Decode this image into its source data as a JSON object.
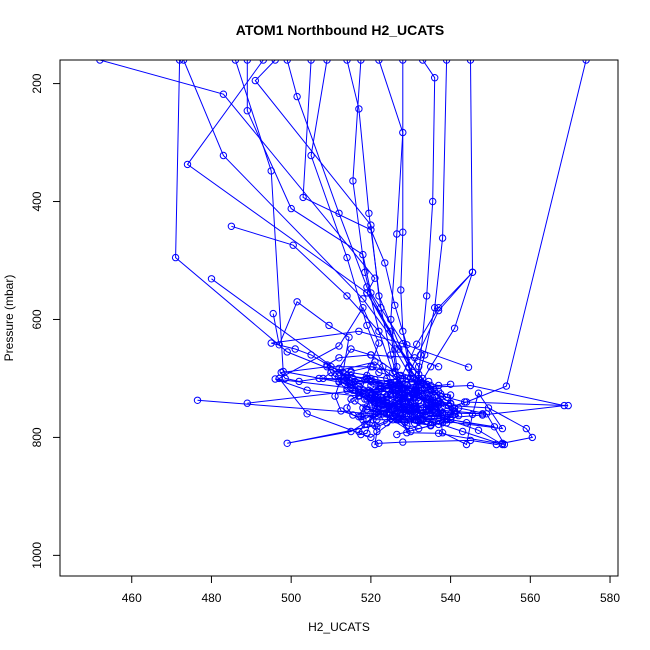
{
  "chart_data": {
    "type": "line",
    "title": "ATOM1 Northbound H2_UCATS",
    "xlabel": "H2_UCATS",
    "ylabel": "Pressure (mbar)",
    "xlim": [
      442,
      582
    ],
    "ylim": [
      1035,
      160
    ],
    "y_inverted": true,
    "xticks": [
      460,
      480,
      500,
      520,
      540,
      560,
      580
    ],
    "yticks": [
      200,
      400,
      600,
      800,
      1000
    ],
    "grid": false,
    "marker": "open-circle",
    "color": "#0000ff",
    "series": [
      {
        "x": [
          493.0,
          474.0,
          519.0,
          525.0,
          527.0,
          533.0,
          528.0,
          520.0,
          504.0,
          497.0,
          512.0,
          518.0,
          522.0,
          517.0,
          504.0,
          496.0,
          519.5,
          525.5,
          530.0,
          523.0,
          532.0,
          528.0,
          515.0,
          499.0,
          521.0,
          529.0,
          534.5,
          548.0,
          521.0,
          519.0,
          532.5,
          529.0,
          520.5,
          522.0,
          528.0,
          535.0,
          526.5
        ],
        "y": [
          160.0,
          337.0,
          555.0,
          620.0,
          725.0,
          700.0,
          760.0,
          800.0,
          760.0,
          700.0,
          645.0,
          580.0,
          640.0,
          730.0,
          720.0,
          701.0,
          720.0,
          762.0,
          790.0,
          760.0,
          710.0,
          735.0,
          790.0,
          810.0,
          780.0,
          760.0,
          752.0,
          760.0,
          756.0,
          748.0,
          770.0,
          750.0,
          738.0,
          735.0,
          770.0,
          780.0,
          795.0
        ]
      },
      {
        "x": [
          452.0,
          483.0,
          521.0,
          519.0,
          530.5,
          537.0,
          538.0,
          544.0,
          545.5,
          547.0,
          553.0,
          533.0,
          515.5,
          513.0,
          508.0,
          510.0,
          521.0,
          529.5,
          536.0,
          534.0,
          531.0,
          527.5,
          520.0,
          516.0,
          523.0,
          527.0,
          540.0,
          537.0,
          528.0,
          522.0,
          520.5,
          510.0,
          505.0,
          501.0,
          495.0,
          517.0,
          528.0,
          544.5
        ],
        "y": [
          160.0,
          218.0,
          530.0,
          555.0,
          690.0,
          745.0,
          792.0,
          812.0,
          761.0,
          725.0,
          785.0,
          768.0,
          720.0,
          701.0,
          700.0,
          690.0,
          672.0,
          720.0,
          750.0,
          745.0,
          725.0,
          712.0,
          705.0,
          705.0,
          733.0,
          720.0,
          710.0,
          712.0,
          700.0,
          690.0,
          680.0,
          680.0,
          660.0,
          650.0,
          640.0,
          620.0,
          641.0,
          681.0
        ]
      },
      {
        "x": [
          472.0,
          471.0,
          499.0,
          515.5,
          536.0,
          541.0,
          539.0,
          537.0,
          537.0,
          549.5,
          559.0,
          560.5,
          553.0,
          551.5,
          545.0,
          528.0,
          522.0,
          521.0,
          521.5,
          520.5,
          526.0,
          534.5,
          536.0,
          534.0,
          530.5,
          527.0,
          524.0,
          515.0,
          509.0,
          497.5,
          498.5,
          502.0,
          507.0,
          513.5,
          525.0,
          531.0,
          543.5,
          569.5
        ],
        "y": [
          160.0,
          495.0,
          655.0,
          700.0,
          740.0,
          757.0,
          770.0,
          763.0,
          745.0,
          750.0,
          785.0,
          800.0,
          810.0,
          812.0,
          805.0,
          808.0,
          810.0,
          812.0,
          790.0,
          770.0,
          760.0,
          752.0,
          745.0,
          735.0,
          725.0,
          712.0,
          700.0,
          690.0,
          680.0,
          690.0,
          700.0,
          705.0,
          700.0,
          703.0,
          710.0,
          718.0,
          740.0,
          746.0
        ]
      },
      {
        "x": [
          473.0,
          483.0,
          518.0,
          532.0,
          541.0,
          527.0,
          521.5,
          518.0,
          520.0,
          528.5,
          535.5,
          533.0,
          528.0,
          521.0,
          519.0,
          520.0,
          525.0,
          531.0,
          536.0,
          538.0,
          530.0,
          522.0,
          517.0,
          514.0,
          512.0,
          515.0,
          520.0,
          527.5,
          534.0,
          537.0,
          539.0,
          537.0,
          534.0,
          531.0,
          528.0,
          526.5
        ],
        "y": [
          160.0,
          322.0,
          565.0,
          693.0,
          760.0,
          770.0,
          770.0,
          761.0,
          733.0,
          728.0,
          740.0,
          730.0,
          710.0,
          702.0,
          695.0,
          712.0,
          725.0,
          731.0,
          741.0,
          760.0,
          770.0,
          752.0,
          724.0,
          705.0,
          683.0,
          650.0,
          660.0,
          695.0,
          715.0,
          722.0,
          732.0,
          740.0,
          745.0,
          747.0,
          750.0,
          747.0
        ]
      },
      {
        "x": [
          489.0,
          489.0,
          500.0,
          518.0,
          520.0,
          532.0,
          532.0,
          528.0,
          525.0,
          526.0,
          531.0,
          540.0,
          540.0,
          533.0,
          524.0,
          514.5,
          511.0,
          512.0,
          518.5,
          526.0,
          533.0,
          536.0,
          537.0,
          535.0,
          531.0,
          527.0,
          524.0,
          521.0,
          518.0,
          515.0,
          512.0,
          510.0,
          509.0,
          512.0,
          520.0,
          531.0,
          537.0
        ],
        "y": [
          160.0,
          246.0,
          412.0,
          490.0,
          555.0,
          680.0,
          720.0,
          750.0,
          760.0,
          760.0,
          757.0,
          742.0,
          728.0,
          720.0,
          710.0,
          703.0,
          696.0,
          690.0,
          702.0,
          720.0,
          728.0,
          732.0,
          740.0,
          748.0,
          750.0,
          748.0,
          740.0,
          732.0,
          725.0,
          715.0,
          705.0,
          690.0,
          677.0,
          665.0,
          660.0,
          665.0,
          680.0
        ]
      },
      {
        "x": [
          496.0,
          491.0,
          520.0,
          522.0,
          529.5,
          534.0,
          537.5,
          541.0,
          536.0,
          527.5,
          519.0,
          514.0,
          512.0,
          514.0,
          519.0,
          525.0,
          532.0,
          536.0,
          534.0,
          531.0,
          527.0,
          523.0,
          520.0,
          517.0,
          514.5,
          513.5,
          515.0,
          520.0,
          526.0,
          532.0,
          535.0,
          536.0,
          535.0,
          532.0
        ],
        "y": [
          160.0,
          195.0,
          440.0,
          560.0,
          682.0,
          725.0,
          755.0,
          760.0,
          765.0,
          752.0,
          735.0,
          720.0,
          706.0,
          695.0,
          700.0,
          712.0,
          732.0,
          748.0,
          760.0,
          757.0,
          748.0,
          738.0,
          728.0,
          718.0,
          708.0,
          698.0,
          688.0,
          680.0,
          688.0,
          700.0,
          712.0,
          722.0,
          730.0,
          737.0
        ]
      },
      {
        "x": [
          499.0,
          501.5,
          512.0,
          519.0,
          527.0,
          535.0,
          542.0,
          549.0,
          553.5,
          537.0,
          529.0,
          528.0,
          526.0,
          522.0,
          517.0,
          514.0,
          515.5,
          520.0,
          525.0,
          531.5,
          535.5,
          537.0,
          534.0,
          530.0,
          525.5,
          521.0,
          518.5,
          519.5,
          524.0,
          529.0,
          533.0,
          534.5
        ],
        "y": [
          160.0,
          222.0,
          420.0,
          545.0,
          650.0,
          720.0,
          750.0,
          760.0,
          812.0,
          793.0,
          792.0,
          760.0,
          743.0,
          740.0,
          729.0,
          717.0,
          707.0,
          700.0,
          707.0,
          720.0,
          733.0,
          745.0,
          752.0,
          757.0,
          753.0,
          745.0,
          735.0,
          725.0,
          717.0,
          712.0,
          708.0,
          705.0
        ]
      },
      {
        "x": [
          486.0,
          495.0,
          498.0,
          515.0,
          529.0,
          537.0,
          545.5,
          537.0,
          531.5,
          527.5,
          524.0,
          520.5,
          519.0,
          517.5,
          517.0,
          518.5,
          522.0,
          527.0,
          532.0,
          535.0,
          534.0,
          530.5,
          526.0,
          522.0,
          520.0
        ],
        "y": [
          160.0,
          348.0,
          688.0,
          710.0,
          700.0,
          585.0,
          520.0,
          580.0,
          642.0,
          700.0,
          730.0,
          760.0,
          793.0,
          795.0,
          790.0,
          778.0,
          760.0,
          742.0,
          728.0,
          718.0,
          710.0,
          706.0,
          706.0,
          712.0,
          723.0
        ]
      },
      {
        "x": [
          505.0,
          503.0,
          520.0,
          523.5,
          526.0,
          529.0,
          530.0,
          528.0,
          524.0,
          521.0,
          518.0,
          515.5,
          514.0,
          515.0,
          518.0,
          522.0,
          526.5,
          530.5,
          532.0,
          531.0,
          528.0,
          524.0,
          521.0
        ],
        "y": [
          160.0,
          393.0,
          448.0,
          504.0,
          576.0,
          643.0,
          700.0,
          725.0,
          743.0,
          760.0,
          770.0,
          762.0,
          750.0,
          735.0,
          726.0,
          722.0,
          722.0,
          728.0,
          738.0,
          748.0,
          752.0,
          750.0,
          742.0
        ]
      },
      {
        "x": [
          509.0,
          505.0,
          514.0,
          519.0,
          523.0,
          525.5,
          526.0,
          524.0,
          521.5,
          519.0,
          517.5,
          518.0,
          520.5,
          524.0,
          527.5,
          529.5,
          530.0
        ],
        "y": [
          160.0,
          322.0,
          495.0,
          610.0,
          680.0,
          720.0,
          752.0,
          775.0,
          782.0,
          778.0,
          765.0,
          750.0,
          738.0,
          732.0,
          733.0,
          740.0,
          750.0
        ]
      },
      {
        "x": [
          514.0,
          517.0,
          519.5,
          522.5,
          525.0,
          527.0,
          528.0,
          526.5,
          523.5,
          521.5,
          520.0,
          520.5,
          523.0,
          526.0,
          528.5,
          530.0,
          531.0
        ],
        "y": [
          160.0,
          243.0,
          420.0,
          580.0,
          660.0,
          708.0,
          728.0,
          740.0,
          745.0,
          742.0,
          735.0,
          726.0,
          722.0,
          724.0,
          732.0,
          742.0,
          752.0
        ]
      },
      {
        "x": [
          517.5,
          515.5,
          518.5,
          522.0,
          525.5,
          528.5,
          530.0,
          529.0,
          526.5,
          523.5,
          521.5,
          521.0,
          522.5,
          525.5,
          528.5,
          530.5
        ],
        "y": [
          160.0,
          365.0,
          520.0,
          620.0,
          690.0,
          725.0,
          750.0,
          765.0,
          770.0,
          765.0,
          752.0,
          740.0,
          732.0,
          730.0,
          734.0,
          742.0
        ]
      },
      {
        "x": [
          522.0,
          528.0,
          526.5,
          525.0,
          526.5,
          528.0,
          530.0,
          531.5,
          532.5,
          531.0,
          528.5,
          525.5,
          524.0,
          524.5,
          527.0
        ],
        "y": [
          160.0,
          283.0,
          455.0,
          600.0,
          680.0,
          720.0,
          740.0,
          750.0,
          760.0,
          770.0,
          774.0,
          770.0,
          760.0,
          748.0,
          738.0
        ]
      },
      {
        "x": [
          528.0,
          528.0,
          527.5,
          528.0,
          529.5,
          532.0,
          534.5,
          536.0,
          535.0,
          532.0,
          529.0,
          527.0,
          526.5,
          528.0,
          531.0
        ],
        "y": [
          160.0,
          452.0,
          550.0,
          620.0,
          680.0,
          720.0,
          745.0,
          765.0,
          780.0,
          785.0,
          780.0,
          768.0,
          752.0,
          740.0,
          733.0
        ]
      },
      {
        "x": [
          533.0,
          536.0,
          535.5,
          534.0,
          532.5,
          531.5,
          532.0,
          534.0,
          537.0,
          539.0,
          538.0,
          535.0,
          532.5,
          531.5
        ],
        "y": [
          160.0,
          190.0,
          400.0,
          560.0,
          660.0,
          720.0,
          752.0,
          772.0,
          778.0,
          770.0,
          758.0,
          750.0,
          748.0,
          752.0
        ]
      },
      {
        "x": [
          539.0,
          538.0,
          536.0,
          533.5,
          531.0,
          530.5,
          532.0,
          535.0,
          538.0,
          540.0,
          539.5,
          537.0,
          534.0
        ],
        "y": [
          160.0,
          462.0,
          580.0,
          660.0,
          720.0,
          756.0,
          773.0,
          780.0,
          775.0,
          760.0,
          746.0,
          738.0,
          735.0
        ]
      },
      {
        "x": [
          545.0,
          545.5,
          541.0,
          535.0,
          531.0,
          529.5,
          531.5,
          535.5,
          539.0,
          541.0,
          540.0,
          537.0
        ],
        "y": [
          160.0,
          520.0,
          615.0,
          680.0,
          725.0,
          755.0,
          770.0,
          775.0,
          768.0,
          755.0,
          743.0,
          738.0
        ]
      },
      {
        "x": [
          574.0,
          554.0,
          544.0,
          536.0,
          531.0,
          529.0,
          531.0,
          535.0,
          539.0,
          542.0,
          541.0,
          537.5,
          534.0
        ],
        "y": [
          160.0,
          713.0,
          740.0,
          757.0,
          765.0,
          770.0,
          776.0,
          779.0,
          775.0,
          763.0,
          750.0,
          742.0,
          740.0
        ]
      },
      {
        "x": [
          476.5,
          520.0,
          540.0,
          551.0,
          544.0,
          533.0,
          525.0,
          521.0,
          522.0,
          527.0,
          533.5,
          537.5
        ],
        "y": [
          737.0,
          760.0,
          770.0,
          782.0,
          775.0,
          760.0,
          745.0,
          730.0,
          718.0,
          712.0,
          716.0,
          726.0
        ]
      },
      {
        "x": [
          480.0,
          517.0,
          535.0,
          547.0,
          553.0,
          543.0,
          532.0,
          524.0,
          520.0,
          522.5,
          528.0
        ],
        "y": [
          531.0,
          713.0,
          760.0,
          788.0,
          812.0,
          790.0,
          765.0,
          742.0,
          724.0,
          712.0,
          715.0
        ]
      },
      {
        "x": [
          485.0,
          500.5,
          514.0,
          526.0,
          532.0,
          529.5,
          524.0,
          519.0,
          516.0,
          517.5,
          522.5
        ],
        "y": [
          442.0,
          474.0,
          560.0,
          650.0,
          720.0,
          750.0,
          758.0,
          752.0,
          738.0,
          724.0,
          717.0
        ]
      },
      {
        "x": [
          489.0,
          517.0,
          545.0,
          568.5,
          548.0,
          533.0,
          525.0,
          521.5,
          523.0,
          528.0
        ],
        "y": [
          742.0,
          720.0,
          712.0,
          746.0,
          762.0,
          770.0,
          768.0,
          758.0,
          745.0,
          738.0
        ]
      },
      {
        "x": [
          495.5,
          497.0,
          501.5,
          509.5,
          514.5,
          513.0,
          511.0,
          512.5,
          517.0,
          523.0
        ],
        "y": [
          590.0,
          643.0,
          570.0,
          610.0,
          630.0,
          690.0,
          730.0,
          755.0,
          765.0,
          760.0
        ]
      }
    ]
  }
}
